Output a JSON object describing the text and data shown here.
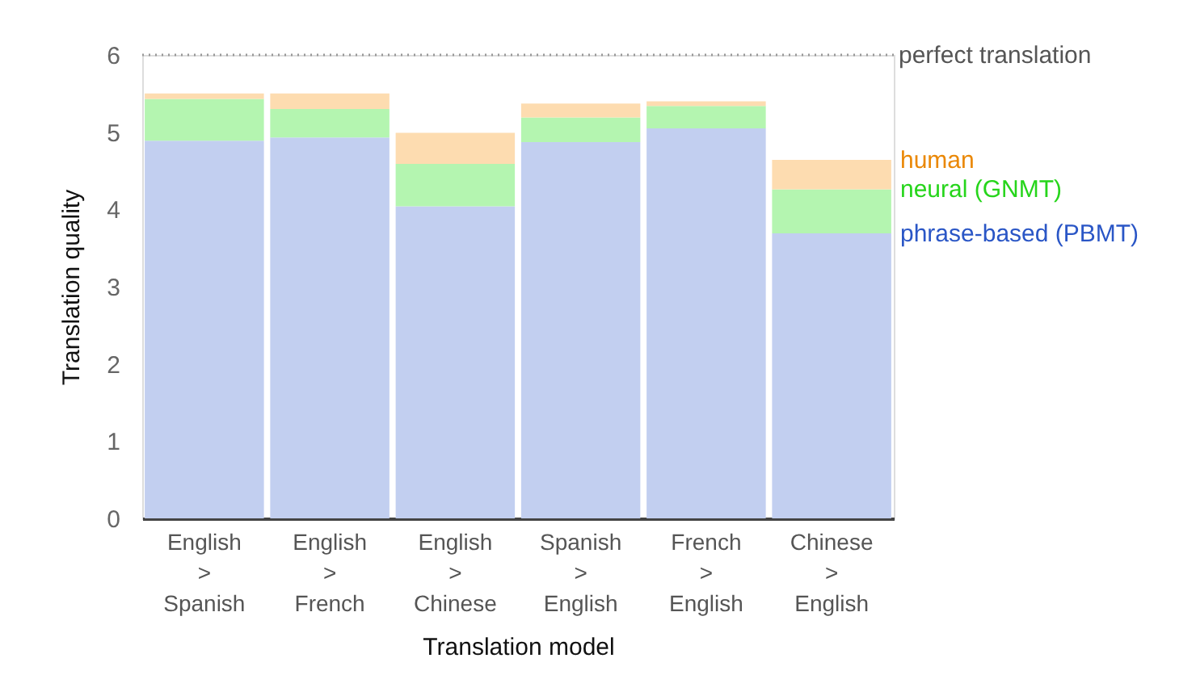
{
  "chart_data": {
    "type": "bar",
    "stacked": true,
    "xlabel": "Translation model",
    "ylabel": "Translation quality",
    "categories": [
      "English > Spanish",
      "English > French",
      "English > Chinese",
      "Spanish > English",
      "French > English",
      "Chinese > English"
    ],
    "series": [
      {
        "name": "phrase-based (PBMT)",
        "color": "#c2cff0",
        "values": [
          4.89,
          4.93,
          4.04,
          4.87,
          5.05,
          3.69
        ]
      },
      {
        "name": "neural (GNMT)",
        "color": "#b4f5b0",
        "values": [
          0.54,
          0.37,
          0.55,
          0.32,
          0.29,
          0.57
        ]
      },
      {
        "name": "human",
        "color": "#fddcb0",
        "values": [
          0.07,
          0.2,
          0.4,
          0.18,
          0.06,
          0.38
        ]
      }
    ],
    "ylim": [
      0,
      6
    ],
    "yticks": [
      0,
      1,
      2,
      3,
      4,
      5,
      6
    ],
    "ref_lines": [
      {
        "axis": "y",
        "value": 6,
        "label": "perfect translation",
        "line_style": "dotted",
        "color": "#999999"
      }
    ]
  }
}
